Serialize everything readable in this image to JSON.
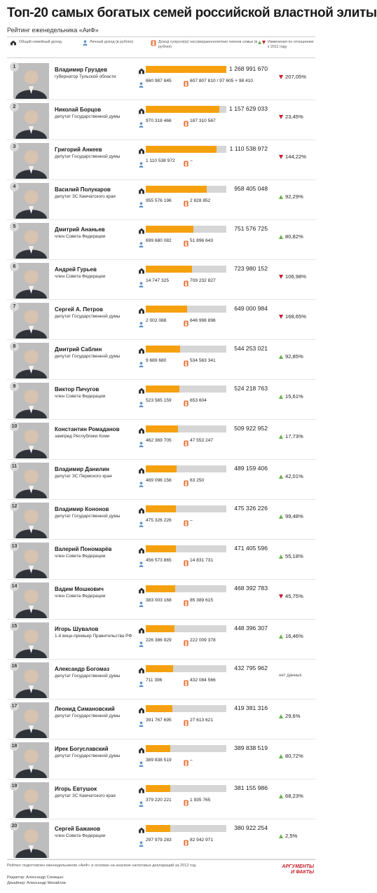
{
  "title": "Топ-20 самых богатых семей российской властной элиты",
  "subtitle": "Рейтинг еженедельника «АиФ»",
  "legend": {
    "total": "Общий семейный доход",
    "personal": "Личный доход (в рублях)",
    "family": "Доход супруги(а)/ несовершеннолетних членов семьи (в рублях)",
    "change": "Изменения по отношению к 2011 году"
  },
  "colors": {
    "bar": "#f5a10f",
    "bar_bg": "#d6d6d6",
    "up": "#69b04a",
    "down": "#c8202a"
  },
  "icons": {
    "total": "house-icon",
    "personal": "person-icon",
    "family": "family-icon",
    "up": "triangle-up-icon",
    "down": "triangle-down-icon"
  },
  "max_total": 1268991670,
  "rows": [
    {
      "rank": "1",
      "name": "Владимир Груздев",
      "position": "губернатор Тульской области",
      "total": "1 268 991 670",
      "total_value": 1268991670,
      "personal": "660 987 845",
      "family": "607 807 810 / 97 605 + 98 410",
      "change": "207,05%",
      "direction": "down"
    },
    {
      "rank": "2",
      "name": "Николай Борцов",
      "position": "депутат Государственной думы",
      "total": "1 157 629 033",
      "total_value": 1157629033,
      "personal": "970 318 466",
      "family": "187 310 567",
      "change": "23,45%",
      "direction": "down"
    },
    {
      "rank": "3",
      "name": "Григорий Анкеев",
      "position": "депутат Государственной думы",
      "total": "1 110 538 972",
      "total_value": 1110538972,
      "personal": "1 110 538 972",
      "family": "–",
      "change": "144,22%",
      "direction": "down"
    },
    {
      "rank": "4",
      "name": "Василий Полукаров",
      "position": "депутат ЗС Камчатского края",
      "total": "958 405 048",
      "total_value": 958405048,
      "personal": "955 576 196",
      "family": "2 828 852",
      "change": "92,29%",
      "direction": "up"
    },
    {
      "rank": "5",
      "name": "Дмитрий Ананьев",
      "position": "член Совета Федерации",
      "total": "751 576 725",
      "total_value": 751576725,
      "personal": "699 680 082",
      "family": "51 896 643",
      "change": "80,82%",
      "direction": "up"
    },
    {
      "rank": "6",
      "name": "Андрей Гурьев",
      "position": "член Совета Федерации",
      "total": "723 980 152",
      "total_value": 723980152,
      "personal": "14 747 325",
      "family": "709 232 827",
      "change": "106,98%",
      "direction": "down"
    },
    {
      "rank": "7",
      "name": "Сергей А. Петров",
      "position": "депутат Государственной думы",
      "total": "649 000 984",
      "total_value": 649000984,
      "personal": "2 002 088",
      "family": "646 998 896",
      "change": "168,65%",
      "direction": "down"
    },
    {
      "rank": "8",
      "name": "Дмитрий Саблин",
      "position": "депутат Государственной думы",
      "total": "544 253 021",
      "total_value": 544253021,
      "personal": "9 689 680",
      "family": "534 563 341",
      "change": "92,85%",
      "direction": "up"
    },
    {
      "rank": "9",
      "name": "Виктор Пичугов",
      "position": "член Совета Федерации",
      "total": "524 218 763",
      "total_value": 524218763,
      "personal": "523 565 159",
      "family": "653 604",
      "change": "15,61%",
      "direction": "up"
    },
    {
      "rank": "10",
      "name": "Константин Ромаданов",
      "position": "зампред Республики Коми",
      "total": "509 922 952",
      "total_value": 509922952,
      "personal": "462 369 705",
      "family": "47 553 247",
      "change": "17,73%",
      "direction": "up"
    },
    {
      "rank": "11",
      "name": "Владимир Данилин",
      "position": "депутат ЗС Пермского края",
      "total": "489 159 406",
      "total_value": 489159406,
      "personal": "489 096 156",
      "family": "63 250",
      "change": "42,01%",
      "direction": "up"
    },
    {
      "rank": "12",
      "name": "Владимир Кононов",
      "position": "депутат Государственной думы",
      "total": "475 326 226",
      "total_value": 475326226,
      "personal": "475 326 226",
      "family": "–",
      "change": "99,48%",
      "direction": "up"
    },
    {
      "rank": "13",
      "name": "Валерий Пономарёв",
      "position": "член Совета Федерации",
      "total": "471 405 596",
      "total_value": 471405596,
      "personal": "456 573 865",
      "family": "14 831 731",
      "change": "55,18%",
      "direction": "up"
    },
    {
      "rank": "14",
      "name": "Вадим Мошкович",
      "position": "член Совета Федерации",
      "total": "468 392 783",
      "total_value": 468392783,
      "personal": "383 003 168",
      "family": "85 389 615",
      "change": "45,75%",
      "direction": "down"
    },
    {
      "rank": "15",
      "name": "Игорь Шувалов",
      "position": "1-й вице-премьер Правительства РФ",
      "total": "448 396 307",
      "total_value": 448396307,
      "personal": "226 386 929",
      "family": "222 009 378",
      "change": "16,46%",
      "direction": "up"
    },
    {
      "rank": "16",
      "name": "Александр Богомаз",
      "position": "депутат Государственной думы",
      "total": "432 795 962",
      "total_value": 432795962,
      "personal": "711 396",
      "family": "432 084 566",
      "change": "нет данных",
      "direction": "none"
    },
    {
      "rank": "17",
      "name": "Леонид Симановский",
      "position": "депутат Государственной думы",
      "total": "419 381 316",
      "total_value": 419381316,
      "personal": "391 767 695",
      "family": "27 613 621",
      "change": "29,6%",
      "direction": "up"
    },
    {
      "rank": "18",
      "name": "Ирек Богуславский",
      "position": "депутат Государственной думы",
      "total": "389 838 519",
      "total_value": 389838519,
      "personal": "389 838 519",
      "family": "–",
      "change": "80,72%",
      "direction": "up"
    },
    {
      "rank": "19",
      "name": "Игорь Евтушок",
      "position": "депутат ЗС Камчатского края",
      "total": "381 155 986",
      "total_value": 381155986,
      "personal": "379 220 221",
      "family": "1 935 765",
      "change": "68,23%",
      "direction": "up"
    },
    {
      "rank": "20",
      "name": "Сергей Бажанов",
      "position": "член Совета Федерации",
      "total": "380 922 254",
      "total_value": 380922254,
      "personal": "297 979 283",
      "family": "82 942 971",
      "change": "2,5%",
      "direction": "up"
    }
  ],
  "footnote": "Рейтинг подготовлен еженедельником «АиФ» и основан на анализе налоговых деклараций за 2012 год",
  "credits": {
    "editor": "Редактор: Александр Синицын",
    "designer": "Дизайнер: Александр Михайлов"
  },
  "logo": {
    "line1": "АРГУМЕНТЫ",
    "line2": "И ФАКТЫ"
  }
}
